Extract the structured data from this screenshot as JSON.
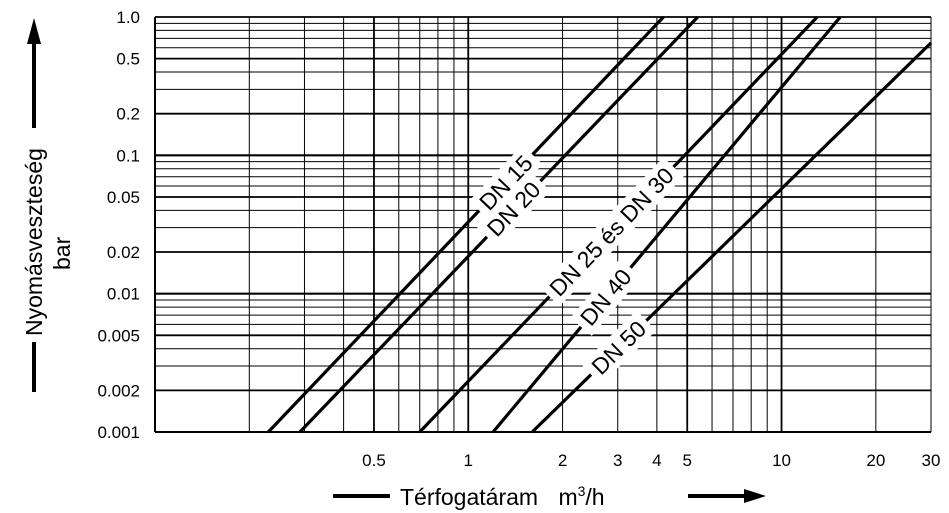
{
  "chart_data": {
    "type": "line",
    "xscale": "log",
    "yscale": "log",
    "xlim": [
      0.1,
      30
    ],
    "ylim": [
      0.001,
      1.0
    ],
    "grid": true,
    "xlabel": {
      "text": "Térfogatáram",
      "unit_base": "m",
      "unit_sup": "3",
      "unit_rest": "/h"
    },
    "ylabel": {
      "line1": "Nyomásveszteség",
      "line2": "bar"
    },
    "x_ticks": [
      {
        "value": 0.5,
        "label": "0.5"
      },
      {
        "value": 1,
        "label": "1"
      },
      {
        "value": 2,
        "label": "2"
      },
      {
        "value": 3,
        "label": "3"
      },
      {
        "value": 4,
        "label": "4"
      },
      {
        "value": 5,
        "label": "5"
      },
      {
        "value": 10,
        "label": "10"
      },
      {
        "value": 20,
        "label": "20"
      },
      {
        "value": 30,
        "label": "30"
      }
    ],
    "y_ticks": [
      {
        "value": 0.001,
        "label": "0.001"
      },
      {
        "value": 0.002,
        "label": "0.002"
      },
      {
        "value": 0.005,
        "label": "0.005"
      },
      {
        "value": 0.01,
        "label": "0.01"
      },
      {
        "value": 0.02,
        "label": "0.02"
      },
      {
        "value": 0.05,
        "label": "0.05"
      },
      {
        "value": 0.1,
        "label": "0.1"
      },
      {
        "value": 0.2,
        "label": "0.2"
      },
      {
        "value": 0.5,
        "label": "0.5"
      },
      {
        "value": 1.0,
        "label": "1.0"
      }
    ],
    "series": [
      {
        "name": "DN 15",
        "points": [
          [
            0.23,
            0.001
          ],
          [
            4.2,
            1.0
          ]
        ]
      },
      {
        "name": "DN 20",
        "points": [
          [
            0.29,
            0.001
          ],
          [
            5.4,
            1.0
          ]
        ]
      },
      {
        "name": "DN 25 és DN 30",
        "points": [
          [
            0.7,
            0.001
          ],
          [
            13.0,
            1.0
          ]
        ]
      },
      {
        "name": "DN 40",
        "points": [
          [
            1.2,
            0.001
          ],
          [
            15.4,
            1.0
          ]
        ]
      },
      {
        "name": "DN 50",
        "points": [
          [
            1.6,
            0.001
          ],
          [
            30,
            0.65
          ]
        ]
      }
    ]
  },
  "colors": {
    "line": "#000000",
    "background": "#ffffff"
  }
}
